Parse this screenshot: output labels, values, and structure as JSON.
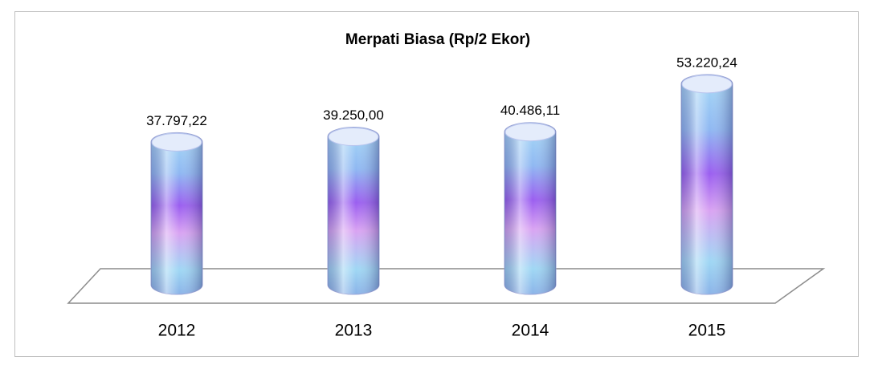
{
  "chart_data": {
    "type": "bar",
    "title": "Merpati Biasa (Rp/2 Ekor)",
    "categories": [
      "2012",
      "2013",
      "2014",
      "2015"
    ],
    "values": [
      37797.22,
      39250.0,
      40486.11,
      53220.24
    ],
    "value_labels": [
      "37.797,22",
      "39.250,00",
      "40.486,11",
      "53.220,24"
    ],
    "ylim": [
      0,
      60000
    ]
  }
}
